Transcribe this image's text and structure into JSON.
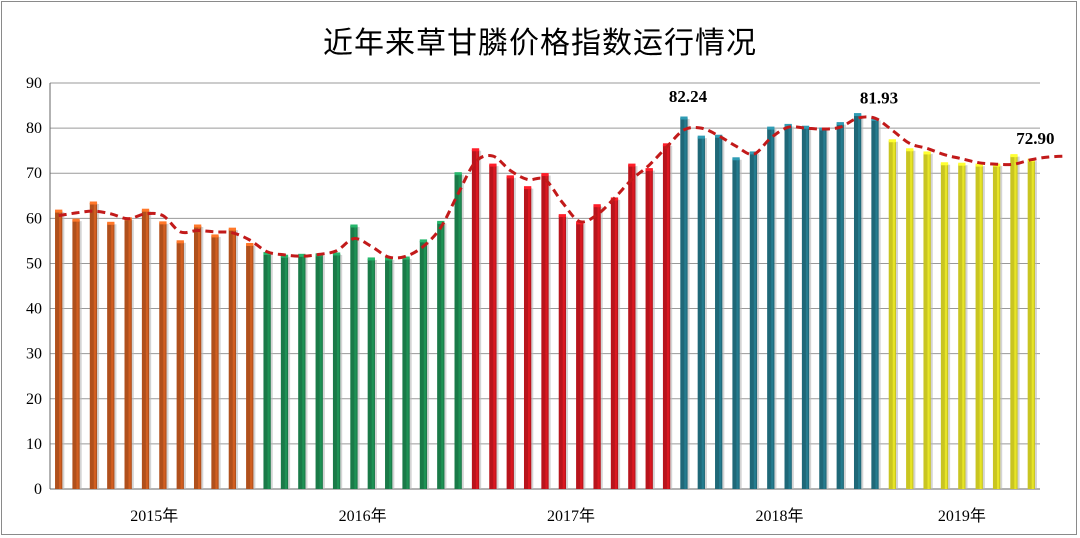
{
  "chart_data": {
    "type": "bar",
    "title": "近年来草甘膦价格指数运行情况",
    "ylim": [
      0,
      90
    ],
    "yticks": [
      0,
      10,
      20,
      30,
      40,
      50,
      60,
      70,
      80,
      90
    ],
    "grid": true,
    "groups": [
      {
        "label": "2015年",
        "color": "#b0501c",
        "values": [
          61.6,
          59.6,
          63.4,
          58.9,
          59.9,
          61.8,
          59.0,
          54.8,
          58.3,
          56.1,
          57.6,
          54.2
        ]
      },
      {
        "label": "2016年",
        "color": "#1a7a48",
        "values": [
          52.2,
          51.6,
          51.8,
          51.9,
          52.1,
          58.3,
          51.0,
          51.0,
          51.2,
          55.0,
          59.1,
          69.9
        ]
      },
      {
        "label": "2017年",
        "color": "#b8141c",
        "values": [
          75.2,
          71.8,
          69.2,
          66.8,
          69.7,
          60.6,
          59.0,
          62.8,
          64.3,
          71.8,
          70.8,
          76.3
        ]
      },
      {
        "label": "2018年",
        "color": "#1f6878",
        "values": [
          82.24,
          78.0,
          78.2,
          73.2,
          74.5,
          80.0,
          80.6,
          80.2,
          79.8,
          81.0,
          83.0,
          81.93
        ]
      },
      {
        "label": "2019年",
        "color": "#c9c521",
        "values": [
          77.2,
          75.2,
          74.5,
          72.1,
          72.0,
          71.8,
          71.8,
          73.9,
          72.9
        ]
      }
    ],
    "trend": [
      60.6,
      61.2,
      61.6,
      61.0,
      59.9,
      61.0,
      60.6,
      57.0,
      57.3,
      57.0,
      56.8,
      55.2,
      52.6,
      51.9,
      51.6,
      52.0,
      52.8,
      55.5,
      53.8,
      51.4,
      51.6,
      53.8,
      58.0,
      65.5,
      72.5,
      73.8,
      70.6,
      68.6,
      68.6,
      63.5,
      59.3,
      60.8,
      64.5,
      68.6,
      71.8,
      75.8,
      79.6,
      80.0,
      78.3,
      76.0,
      74.2,
      77.8,
      80.2,
      80.0,
      79.8,
      80.2,
      82.2,
      82.2,
      79.5,
      76.6,
      75.5,
      74.1,
      73.2,
      72.3,
      72.0,
      72.0,
      73.0,
      73.6,
      73.8
    ],
    "trend_color": "#c21a1a",
    "data_labels": [
      {
        "text": "82.24",
        "index": 36
      },
      {
        "text": "81.93",
        "index": 47
      },
      {
        "text": "72.90",
        "index": 56
      }
    ]
  }
}
